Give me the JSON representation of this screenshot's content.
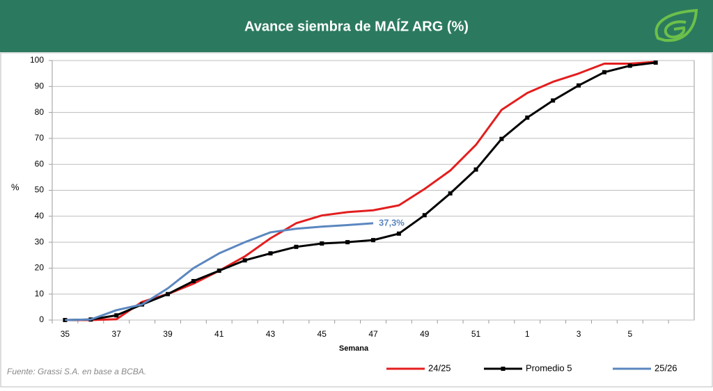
{
  "chart_data": {
    "type": "line",
    "title": "Avance siembra de MAÍZ ARG (%)",
    "y_label": "%",
    "x_label": "Semana",
    "source": "Fuente: Grassi S.A. en base a BCBA.",
    "categories": [
      "35",
      null,
      "37",
      null,
      "39",
      null,
      "41",
      null,
      "43",
      null,
      "45",
      null,
      "47",
      null,
      "49",
      null,
      "51",
      null,
      "1",
      null,
      "3",
      null,
      "5",
      null,
      null
    ],
    "series": [
      {
        "name": "24/25",
        "color": "#e31e1e",
        "marker": false,
        "values": [
          0,
          0,
          0.3,
          7,
          10,
          14,
          19,
          24.5,
          31.5,
          37.3,
          40.3,
          41.6,
          42.3,
          44.2,
          50.5,
          57.6,
          67.5,
          81,
          87.5,
          91.8,
          95,
          98.8,
          98.8,
          99.5,
          null
        ]
      },
      {
        "name": "Promedio 5",
        "color": "#000000",
        "marker": true,
        "values": [
          0,
          0.2,
          1.8,
          6,
          10,
          15,
          19,
          23,
          25.7,
          28.2,
          29.5,
          30,
          30.8,
          33.3,
          40.4,
          48.8,
          58,
          69.8,
          78,
          84.6,
          90.4,
          95.5,
          98,
          99.2,
          null
        ]
      },
      {
        "name": "25/26",
        "color": "#5b87c0",
        "marker": false,
        "values": [
          0,
          0.2,
          3.8,
          6,
          12.2,
          20,
          25.7,
          30,
          33.8,
          35.2,
          36,
          36.6,
          37.3,
          null,
          null,
          null,
          null,
          null,
          null,
          null,
          null,
          null,
          null,
          null,
          null
        ],
        "value_labels": [
          null,
          null,
          null,
          null,
          null,
          null,
          null,
          null,
          null,
          null,
          null,
          null,
          "37,3%",
          null,
          null,
          null,
          null,
          null,
          null,
          null,
          null,
          null,
          null,
          null,
          null
        ]
      }
    ],
    "ylim": [
      0,
      100
    ],
    "yticks": [
      0,
      10,
      20,
      30,
      40,
      50,
      60,
      70,
      80,
      90,
      100
    ],
    "grid": true,
    "legend": "bottom"
  }
}
